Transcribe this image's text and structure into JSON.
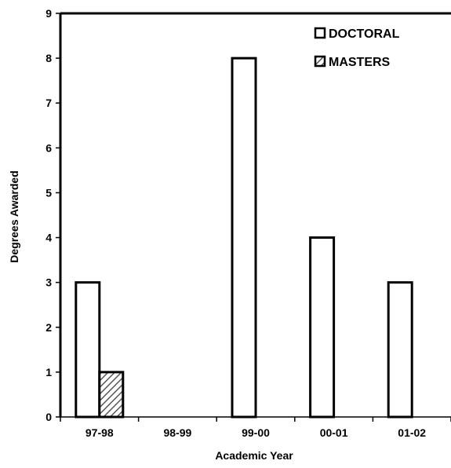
{
  "chart_data": {
    "type": "bar",
    "title": "",
    "xlabel": "Academic Year",
    "ylabel": "Degrees Awarded",
    "categories": [
      "97-98",
      "98-99",
      "99-00",
      "00-01",
      "01-02"
    ],
    "series": [
      {
        "name": "DOCTORAL",
        "values": [
          3,
          0,
          8,
          4,
          3
        ],
        "color": "#ffffff",
        "pattern": "none"
      },
      {
        "name": "MASTERS",
        "values": [
          1,
          0,
          0,
          0,
          0
        ],
        "color": "#ffffff",
        "pattern": "diagonal-hatch"
      }
    ],
    "ylim": [
      0,
      9
    ],
    "yticks": [
      0,
      1,
      2,
      3,
      4,
      5,
      6,
      7,
      8,
      9
    ],
    "grid": false,
    "legend_position": "top-right"
  }
}
